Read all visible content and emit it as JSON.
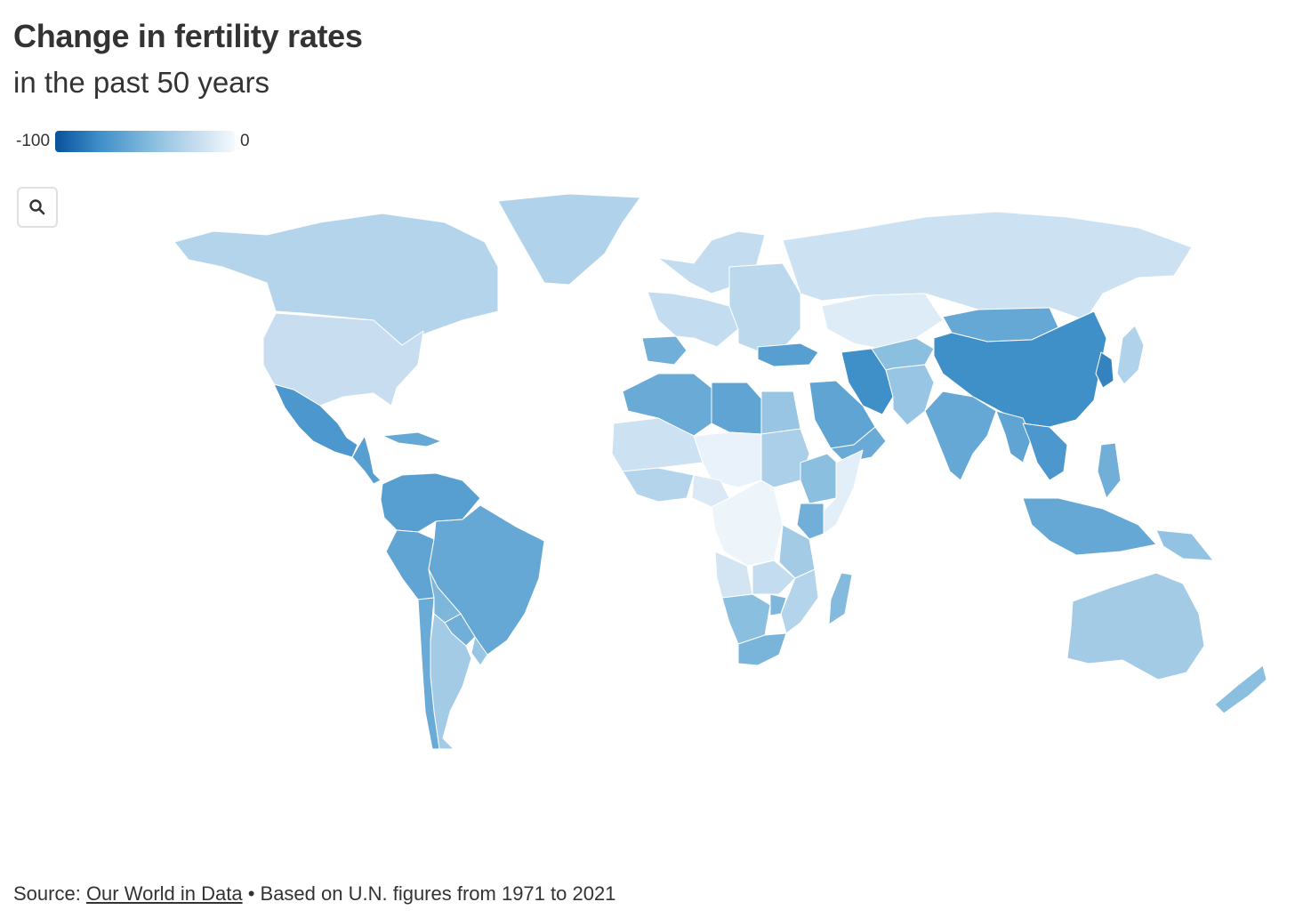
{
  "header": {
    "title": "Change in fertility rates",
    "subtitle": "in the past 50 years"
  },
  "legend": {
    "min_label": "-100",
    "max_label": "0",
    "color_low": "#08519c",
    "color_high": "#f4f9fd"
  },
  "controls": {
    "search_icon": "search-icon"
  },
  "map": {
    "type": "choropleth",
    "metric": "Change in fertility rates (%)",
    "regions": [
      {
        "name": "Greenland",
        "value": -30
      },
      {
        "name": "Canada",
        "value": -28
      },
      {
        "name": "United States",
        "value": -20
      },
      {
        "name": "Mexico",
        "value": -70
      },
      {
        "name": "Central America",
        "value": -65
      },
      {
        "name": "Caribbean",
        "value": -60
      },
      {
        "name": "Colombia / Venezuela / Ecuador",
        "value": -65
      },
      {
        "name": "Peru",
        "value": -62
      },
      {
        "name": "Brazil",
        "value": -60
      },
      {
        "name": "Bolivia",
        "value": -50
      },
      {
        "name": "Paraguay",
        "value": -55
      },
      {
        "name": "Uruguay",
        "value": -40
      },
      {
        "name": "Argentina",
        "value": -35
      },
      {
        "name": "Chile",
        "value": -58
      },
      {
        "name": "Iceland / Scandinavia",
        "value": -22
      },
      {
        "name": "Western Europe",
        "value": -22
      },
      {
        "name": "Iberia",
        "value": -55
      },
      {
        "name": "Eastern Europe",
        "value": -25
      },
      {
        "name": "Russia",
        "value": -18
      },
      {
        "name": "Kazakhstan",
        "value": -10
      },
      {
        "name": "Mongolia",
        "value": -60
      },
      {
        "name": "China",
        "value": -75
      },
      {
        "name": "Korea",
        "value": -80
      },
      {
        "name": "Japan",
        "value": -30
      },
      {
        "name": "Turkey",
        "value": -65
      },
      {
        "name": "Iran",
        "value": -75
      },
      {
        "name": "Central Asia",
        "value": -45
      },
      {
        "name": "Afghanistan / Pakistan",
        "value": -40
      },
      {
        "name": "India",
        "value": -60
      },
      {
        "name": "Bangladesh / Myanmar",
        "value": -62
      },
      {
        "name": "Thailand / Indochina",
        "value": -70
      },
      {
        "name": "Saudi Arabia",
        "value": -62
      },
      {
        "name": "Yemen / Oman",
        "value": -58
      },
      {
        "name": "Morocco / Algeria",
        "value": -58
      },
      {
        "name": "Libya",
        "value": -62
      },
      {
        "name": "Egypt",
        "value": -40
      },
      {
        "name": "West Sahel",
        "value": -18
      },
      {
        "name": "Niger / Chad",
        "value": -5
      },
      {
        "name": "Sudan",
        "value": -32
      },
      {
        "name": "Ethiopia",
        "value": -45
      },
      {
        "name": "Somalia",
        "value": -8
      },
      {
        "name": "Kenya",
        "value": -55
      },
      {
        "name": "Gulf of Guinea",
        "value": -28
      },
      {
        "name": "Nigeria",
        "value": -12
      },
      {
        "name": "Central Africa",
        "value": -3
      },
      {
        "name": "Tanzania",
        "value": -35
      },
      {
        "name": "Angola",
        "value": -15
      },
      {
        "name": "Zambia",
        "value": -22
      },
      {
        "name": "Mozambique",
        "value": -28
      },
      {
        "name": "Namibia / Botswana",
        "value": -45
      },
      {
        "name": "Zimbabwe",
        "value": -50
      },
      {
        "name": "South Africa",
        "value": -52
      },
      {
        "name": "Madagascar",
        "value": -48
      },
      {
        "name": "Malaysia / Indonesia",
        "value": -60
      },
      {
        "name": "Philippines",
        "value": -55
      },
      {
        "name": "Papua New Guinea",
        "value": -42
      },
      {
        "name": "Australia",
        "value": -35
      },
      {
        "name": "New Zealand",
        "value": -45
      }
    ]
  },
  "footer": {
    "source_prefix": "Source: ",
    "source_link": "Our World in Data",
    "source_suffix": " • Based on U.N. figures from 1971 to 2021"
  }
}
